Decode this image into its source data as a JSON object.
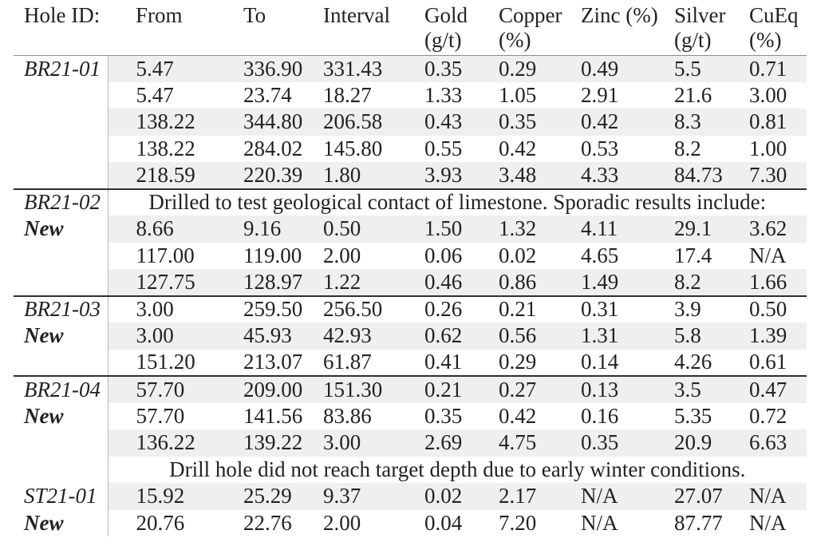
{
  "colors": {
    "background": "#ffffff",
    "text": "#222222",
    "row_alt": "#efefef",
    "header_rule": "#8e8e8e",
    "section_rule": "#2f2f2f",
    "column_divider": "#b5b5b5"
  },
  "table": {
    "columns": [
      {
        "id": "hole_id",
        "label": "Hole ID:",
        "sub": ""
      },
      {
        "id": "from",
        "label": "From",
        "sub": ""
      },
      {
        "id": "to",
        "label": "To",
        "sub": ""
      },
      {
        "id": "interval",
        "label": "Interval",
        "sub": ""
      },
      {
        "id": "gold",
        "label": "Gold",
        "sub": "(g/t)"
      },
      {
        "id": "copper",
        "label": "Copper",
        "sub": "(%)"
      },
      {
        "id": "zinc",
        "label": "Zinc (%)",
        "sub": ""
      },
      {
        "id": "silver",
        "label": "Silver",
        "sub": "(g/t)"
      },
      {
        "id": "cueq",
        "label": "CuEq",
        "sub": "(%)"
      }
    ],
    "sections": [
      {
        "hole_id": "BR21-01",
        "rule_above": false,
        "rows": [
          {
            "label": "BR21-01",
            "type": "data",
            "values": [
              "5.47",
              "336.90",
              "331.43",
              "0.35",
              "0.29",
              "0.49",
              "5.5",
              "0.71"
            ]
          },
          {
            "label": "",
            "type": "data",
            "values": [
              "5.47",
              "23.74",
              "18.27",
              "1.33",
              "1.05",
              "2.91",
              "21.6",
              "3.00"
            ]
          },
          {
            "label": "",
            "type": "data",
            "values": [
              "138.22",
              "344.80",
              "206.58",
              "0.43",
              "0.35",
              "0.42",
              "8.3",
              "0.81"
            ]
          },
          {
            "label": "",
            "type": "data",
            "values": [
              "138.22",
              "284.02",
              "145.80",
              "0.55",
              "0.42",
              "0.53",
              "8.2",
              "1.00"
            ]
          },
          {
            "label": "",
            "type": "data",
            "values": [
              "218.59",
              "220.39",
              "1.80",
              "3.93",
              "3.48",
              "4.33",
              "84.73",
              "7.30"
            ]
          }
        ]
      },
      {
        "hole_id": "BR21-02",
        "rule_above": true,
        "rows": [
          {
            "label": "BR21-02",
            "type": "note",
            "note": "Drilled to test geological contact of limestone. Sporadic results include:"
          },
          {
            "label": "New",
            "type": "data",
            "values": [
              "8.66",
              "9.16",
              "0.50",
              "1.50",
              "1.32",
              "4.11",
              "29.1",
              "3.62"
            ]
          },
          {
            "label": "",
            "type": "data",
            "values": [
              "117.00",
              "119.00",
              "2.00",
              "0.06",
              "0.02",
              "4.65",
              "17.4",
              "N/A"
            ]
          },
          {
            "label": "",
            "type": "data",
            "values": [
              "127.75",
              "128.97",
              "1.22",
              "0.46",
              "0.86",
              "1.49",
              "8.2",
              "1.66"
            ]
          }
        ]
      },
      {
        "hole_id": "BR21-03",
        "rule_above": true,
        "rows": [
          {
            "label": "BR21-03",
            "type": "data",
            "values": [
              "3.00",
              "259.50",
              "256.50",
              "0.26",
              "0.21",
              "0.31",
              "3.9",
              "0.50"
            ]
          },
          {
            "label": "New",
            "type": "data",
            "values": [
              "3.00",
              "45.93",
              "42.93",
              "0.62",
              "0.56",
              "1.31",
              "5.8",
              "1.39"
            ]
          },
          {
            "label": "",
            "type": "data",
            "values": [
              "151.20",
              "213.07",
              "61.87",
              "0.41",
              "0.29",
              "0.14",
              "4.26",
              "0.61"
            ]
          }
        ]
      },
      {
        "hole_id": "BR21-04",
        "rule_above": true,
        "rows": [
          {
            "label": "BR21-04",
            "type": "data",
            "values": [
              "57.70",
              "209.00",
              "151.30",
              "0.21",
              "0.27",
              "0.13",
              "3.5",
              "0.47"
            ]
          },
          {
            "label": "New",
            "type": "data",
            "values": [
              "57.70",
              "141.56",
              "83.86",
              "0.35",
              "0.42",
              "0.16",
              "5.35",
              "0.72"
            ]
          },
          {
            "label": "",
            "type": "data",
            "values": [
              "136.22",
              "139.22",
              "3.00",
              "2.69",
              "4.75",
              "0.35",
              "20.9",
              "6.63"
            ]
          },
          {
            "label": "",
            "type": "note",
            "note": "Drill hole did not reach target depth due to early winter conditions."
          }
        ]
      },
      {
        "hole_id": "ST21-01",
        "rule_above": false,
        "rows": [
          {
            "label": "ST21-01",
            "type": "data",
            "values": [
              "15.92",
              "25.29",
              "9.37",
              "0.02",
              "2.17",
              "N/A",
              "27.07",
              "N/A"
            ]
          },
          {
            "label": "New",
            "type": "data",
            "values": [
              "20.76",
              "22.76",
              "2.00",
              "0.04",
              "7.20",
              "N/A",
              "87.77",
              "N/A"
            ]
          }
        ]
      }
    ]
  }
}
